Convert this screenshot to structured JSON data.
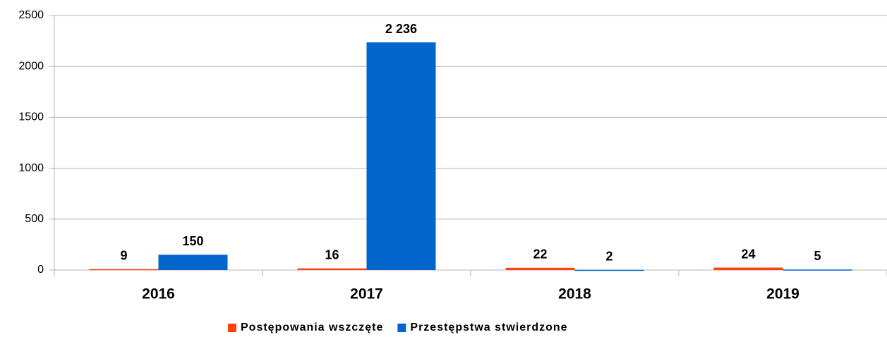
{
  "chart_data": {
    "type": "bar",
    "categories": [
      "2016",
      "2017",
      "2018",
      "2019"
    ],
    "series": [
      {
        "name": "Postępowania wszczęte",
        "color": "#ff420e",
        "values": [
          9,
          16,
          22,
          24
        ]
      },
      {
        "name": "Przestępstwa stwierdzone",
        "color": "#0066cc",
        "values": [
          150,
          2236,
          2,
          5
        ],
        "value_labels": [
          "150",
          "2 236",
          "2",
          "5"
        ]
      }
    ],
    "ylim": [
      0,
      2500
    ],
    "yticks": [
      0,
      500,
      1000,
      1500,
      2000,
      2500
    ],
    "grid": true,
    "legend": "bottom"
  }
}
